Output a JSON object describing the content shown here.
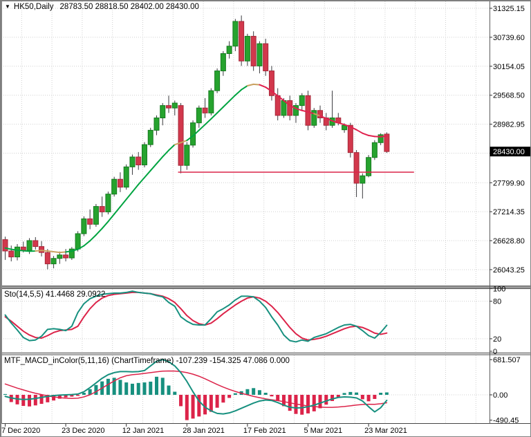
{
  "header": {
    "symbol_timeframe": "HK50,Daily",
    "ohlc": "28783.50 28818.50 28402.00 28430.00",
    "dropdown_icon": "triangle-down"
  },
  "price_axis": {
    "ticks": [
      "31325.15",
      "30739.60",
      "30154.05",
      "29568.50",
      "28982.95",
      "27799.90",
      "27214.35",
      "26628.80",
      "26043.25"
    ],
    "current_price": "28430.00"
  },
  "time_axis": {
    "labels": [
      "7 Dec 2020",
      "23 Dec 2020",
      "12 Jan 2021",
      "28 Jan 2021",
      "17 Feb 2021",
      "5 Mar 2021",
      "23 Mar 2021"
    ],
    "label_every_bars": 10
  },
  "panels": {
    "sto": {
      "label": "Sto(14,5,5) 41.4468 29.0922",
      "ticks": [
        "100",
        "80",
        "20",
        "0"
      ],
      "levels": [
        80,
        20
      ]
    },
    "macd": {
      "label": "MTF_MACD_inColor(5,11,16) (ChartTimeframe) -107.239 -154.325 47.086 0.000",
      "ticks": [
        "681.507",
        "0.00",
        "-490.45"
      ]
    }
  },
  "colors": {
    "bg": "#ffffff",
    "grid": "#cfcfcf",
    "border": "#5a5a5a",
    "separator": "#9a9a9a",
    "text": "#000000",
    "bull": "#26a32e",
    "bull_stroke": "#157a1f",
    "bear": "#d2384c",
    "bear_stroke": "#a5293a",
    "wick": "#3a3a3e",
    "ma_up": "#00a441",
    "ma_down": "#e0224e",
    "ma_flat": "#c9a15f",
    "teal": "#17907f",
    "crimson": "#dc2349",
    "tag_bg": "#000000",
    "tag_fg": "#ffffff"
  },
  "chart_data": [
    {
      "type": "candlestick",
      "title": "HK50,Daily",
      "ohlc_header": {
        "open": 28783.5,
        "high": 28818.5,
        "low": 28402.0,
        "close": 28430.0
      },
      "ylim": [
        25707,
        31479
      ],
      "y_ticks": [
        31325.15,
        30739.6,
        30154.05,
        29568.5,
        28982.95,
        27799.9,
        27214.35,
        26628.8,
        26043.25
      ],
      "y_grid_extra": 28397.4,
      "x_labels": [
        "7 Dec 2020",
        "23 Dec 2020",
        "12 Jan 2021",
        "28 Jan 2021",
        "17 Feb 2021",
        "5 Mar 2021",
        "23 Mar 2021"
      ],
      "candles": [
        [
          26650,
          26710,
          26240,
          26420
        ],
        [
          26420,
          26530,
          26210,
          26300
        ],
        [
          26300,
          26560,
          26230,
          26500
        ],
        [
          26500,
          26610,
          26390,
          26430
        ],
        [
          26430,
          26680,
          26360,
          26630
        ],
        [
          26630,
          26700,
          26450,
          26510
        ],
        [
          26510,
          26620,
          26310,
          26390
        ],
        [
          26390,
          26460,
          26050,
          26160
        ],
        [
          26160,
          26320,
          26070,
          26270
        ],
        [
          26270,
          26410,
          26160,
          26340
        ],
        [
          26340,
          26460,
          26210,
          26280
        ],
        [
          26280,
          26500,
          26240,
          26460
        ],
        [
          26460,
          26820,
          26410,
          26770
        ],
        [
          26770,
          27120,
          26720,
          27070
        ],
        [
          27070,
          27260,
          26860,
          26960
        ],
        [
          26960,
          27370,
          26910,
          27320
        ],
        [
          27320,
          27520,
          27110,
          27210
        ],
        [
          27210,
          27620,
          27160,
          27570
        ],
        [
          27570,
          27920,
          27520,
          27870
        ],
        [
          27870,
          28010,
          27610,
          27710
        ],
        [
          27710,
          28170,
          27660,
          28120
        ],
        [
          28120,
          28370,
          27960,
          28320
        ],
        [
          28320,
          28420,
          28060,
          28160
        ],
        [
          28160,
          28620,
          28110,
          28570
        ],
        [
          28570,
          28910,
          28520,
          28860
        ],
        [
          28860,
          29160,
          28760,
          29110
        ],
        [
          29110,
          29410,
          28960,
          29360
        ],
        [
          29360,
          29560,
          29210,
          29310
        ],
        [
          29310,
          29460,
          29160,
          29410
        ],
        [
          29360,
          29410,
          27990,
          28150
        ],
        [
          28150,
          28620,
          28060,
          28560
        ],
        [
          28560,
          29060,
          28510,
          29010
        ],
        [
          29010,
          29360,
          28910,
          29310
        ],
        [
          29310,
          29510,
          29110,
          29210
        ],
        [
          29210,
          29710,
          29160,
          29660
        ],
        [
          29660,
          30110,
          29610,
          30060
        ],
        [
          30060,
          30460,
          29960,
          30410
        ],
        [
          30410,
          30660,
          30310,
          30560
        ],
        [
          30560,
          31110,
          30460,
          31060
        ],
        [
          31060,
          31180,
          30160,
          30260
        ],
        [
          30260,
          30810,
          30160,
          30760
        ],
        [
          30760,
          30860,
          30060,
          30160
        ],
        [
          30160,
          30660,
          30010,
          30610
        ],
        [
          30610,
          30710,
          29960,
          30060
        ],
        [
          30060,
          30160,
          29460,
          29560
        ],
        [
          29560,
          29710,
          29060,
          29160
        ],
        [
          29160,
          29510,
          29110,
          29460
        ],
        [
          29460,
          29560,
          29060,
          29160
        ],
        [
          29160,
          29410,
          29010,
          29360
        ],
        [
          29360,
          29610,
          29260,
          29560
        ],
        [
          29560,
          29660,
          28860,
          28960
        ],
        [
          28960,
          29310,
          28910,
          29260
        ],
        [
          29260,
          29360,
          29010,
          29110
        ],
        [
          29110,
          29210,
          28860,
          28960
        ],
        [
          28960,
          29660,
          28910,
          29110
        ],
        [
          29110,
          29210,
          28960,
          29010
        ],
        [
          28870,
          29000,
          28810,
          28960
        ],
        [
          28960,
          29010,
          28310,
          28410
        ],
        [
          28410,
          28460,
          27510,
          27790
        ],
        [
          27790,
          27990,
          27480,
          27940
        ],
        [
          27940,
          28360,
          27910,
          28310
        ],
        [
          28310,
          28660,
          28260,
          28610
        ],
        [
          28610,
          28800,
          28560,
          28770
        ],
        [
          28783.5,
          28818.5,
          28402,
          28430
        ]
      ],
      "ma_line": {
        "values": [
          26480,
          26455,
          26435,
          26425,
          26415,
          26420,
          26430,
          26420,
          26405,
          26390,
          26400,
          26420,
          26455,
          26525,
          26625,
          26745,
          26875,
          27015,
          27165,
          27315,
          27465,
          27615,
          27765,
          27905,
          28045,
          28185,
          28325,
          28455,
          28570,
          28610,
          28655,
          28745,
          28860,
          28975,
          29090,
          29210,
          29330,
          29450,
          29570,
          29680,
          29760,
          29790,
          29780,
          29730,
          29650,
          29555,
          29460,
          29365,
          29300,
          29260,
          29230,
          29195,
          29150,
          29100,
          29050,
          29010,
          28975,
          28930,
          28870,
          28800,
          28755,
          28735,
          28730,
          28745
        ],
        "segment_colors": [
          "up",
          "up",
          "up",
          "up",
          "up",
          "up",
          "flat",
          "flat",
          "flat",
          "flat",
          "flat",
          "up",
          "up",
          "up",
          "up",
          "up",
          "up",
          "up",
          "up",
          "up",
          "up",
          "up",
          "up",
          "up",
          "up",
          "up",
          "up",
          "up",
          "up",
          "flat",
          "flat",
          "up",
          "up",
          "up",
          "up",
          "up",
          "up",
          "up",
          "up",
          "up",
          "up",
          "flat",
          "flat",
          "down",
          "down",
          "down",
          "down",
          "down",
          "down",
          "down",
          "down",
          "down",
          "flat",
          "down",
          "down",
          "down",
          "down",
          "down",
          "down",
          "down",
          "down",
          "down",
          "down",
          "down"
        ]
      },
      "support_line": {
        "price": 28013,
        "start_bar": 29,
        "extend_bars_past_last": 4.5
      }
    },
    {
      "type": "line",
      "name": "Stochastic",
      "label": "Sto(14,5,5) 41.4468 29.0922",
      "ylim": [
        0,
        100
      ],
      "y_ticks": [
        100,
        80,
        20,
        0
      ],
      "levels": [
        80,
        20
      ],
      "series": [
        {
          "name": "%K",
          "color": "teal",
          "values": [
            58,
            45,
            34,
            22,
            17,
            18,
            24,
            35,
            36,
            35,
            33,
            40,
            62,
            76,
            84,
            88,
            91,
            92,
            93,
            93,
            94,
            96,
            94,
            93,
            92,
            89,
            87,
            78,
            72,
            55,
            48,
            43,
            42,
            42,
            52,
            63,
            68,
            74,
            82,
            88,
            88,
            87,
            80,
            70,
            55,
            42,
            26,
            17,
            15,
            18,
            16,
            22,
            25,
            28,
            33,
            38,
            42,
            43,
            40,
            33,
            25,
            21,
            30,
            41.4468
          ]
        },
        {
          "name": "%D",
          "color": "crimson",
          "values": [
            55,
            48,
            40,
            32,
            26,
            22,
            21,
            25,
            30,
            33,
            34,
            35,
            40,
            55,
            68,
            78,
            85,
            89,
            91,
            92,
            93,
            94,
            94,
            93,
            92,
            90,
            88,
            84,
            78,
            68,
            57,
            49,
            44,
            42,
            45,
            52,
            60,
            67,
            74,
            80,
            85,
            87,
            85,
            80,
            72,
            62,
            50,
            38,
            28,
            21,
            18,
            19,
            21,
            24,
            28,
            32,
            36,
            39,
            40,
            38,
            34,
            29,
            27,
            29.0922
          ]
        }
      ]
    },
    {
      "type": "macd",
      "name": "MTF_MACD_inColor",
      "label": "MTF_MACD_inColor(5,11,16) (ChartTimeframe) -107.239 -154.325 47.086 0.000",
      "y_ticks": [
        681.507,
        0.0,
        -490.45
      ],
      "histogram": [
        15,
        -140,
        -185,
        -215,
        -225,
        -205,
        -175,
        -145,
        -110,
        -75,
        -50,
        -35,
        -20,
        40,
        110,
        190,
        260,
        310,
        330,
        290,
        240,
        215,
        230,
        240,
        255,
        350,
        330,
        180,
        60,
        -220,
        -490,
        -460,
        -420,
        -380,
        -330,
        -250,
        -150,
        -60,
        30,
        70,
        110,
        130,
        90,
        40,
        -30,
        -120,
        -220,
        -310,
        -370,
        -385,
        -360,
        -320,
        -260,
        -190,
        -120,
        -60,
        35,
        55,
        45,
        -85,
        -125,
        -80,
        40,
        47.086
      ],
      "macd_line": [
        -30,
        -60,
        -80,
        -90,
        -85,
        -70,
        -50,
        -30,
        -15,
        -5,
        0,
        5,
        15,
        60,
        140,
        230,
        320,
        390,
        430,
        450,
        450,
        445,
        450,
        470,
        560,
        650,
        681.5,
        640,
        560,
        430,
        260,
        60,
        -120,
        -240,
        -310,
        -360,
        -370,
        -350,
        -310,
        -260,
        -210,
        -160,
        -120,
        -100,
        -110,
        -150,
        -200,
        -240,
        -255,
        -250,
        -230,
        -200,
        -160,
        -120,
        -80,
        -50,
        -40,
        -45,
        -60,
        -120,
        -230,
        -330,
        -250,
        -107.239
      ],
      "signal_line": [
        210,
        170,
        130,
        95,
        60,
        30,
        5,
        -20,
        -40,
        -55,
        -65,
        -70,
        -65,
        -40,
        0,
        60,
        130,
        200,
        270,
        330,
        370,
        390,
        400,
        415,
        430,
        445,
        458,
        462,
        460,
        450,
        430,
        400,
        360,
        310,
        255,
        200,
        150,
        105,
        65,
        30,
        0,
        -30,
        -55,
        -78,
        -95,
        -112,
        -132,
        -155,
        -178,
        -198,
        -215,
        -228,
        -237,
        -242,
        -242,
        -236,
        -226,
        -212,
        -198,
        -188,
        -183,
        -184,
        -173,
        -154.325
      ]
    }
  ]
}
